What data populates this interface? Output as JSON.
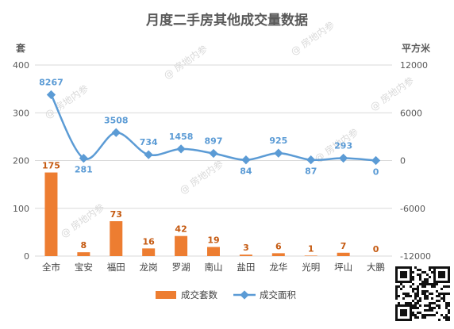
{
  "chart_data": {
    "type": "bar",
    "title": "月度二手房其他成交量数据",
    "categories": [
      "全市",
      "宝安",
      "福田",
      "龙岗",
      "罗湖",
      "南山",
      "盐田",
      "龙华",
      "光明",
      "坪山",
      "大鹏"
    ],
    "series": [
      {
        "name": "成交套数",
        "type": "bar",
        "axis": "left",
        "color": "#ed7d31",
        "label_color": "#c55a11",
        "values": [
          175,
          8,
          73,
          16,
          42,
          19,
          3,
          6,
          1,
          7,
          0
        ]
      },
      {
        "name": "成交面积",
        "type": "line",
        "axis": "right",
        "color": "#5b9bd5",
        "label_color": "#5b9bd5",
        "values": [
          8267,
          281,
          3508,
          734,
          1458,
          897,
          84,
          925,
          87,
          293,
          0
        ]
      }
    ],
    "left_axis": {
      "unit": "套",
      "ylim": [
        0,
        400
      ],
      "ticks": [
        "0",
        "100",
        "200",
        "300",
        "400"
      ],
      "tick_values": [
        0,
        100,
        200,
        300,
        400
      ]
    },
    "right_axis": {
      "unit": "平方米",
      "ylim": [
        -12000,
        12000
      ],
      "ticks": [
        "-12000",
        "-6000",
        "0",
        "6000",
        "12000"
      ],
      "tick_values": [
        -12000,
        -6000,
        0,
        6000,
        12000
      ]
    },
    "grid": true,
    "legend_position": "bottom",
    "watermark": "@ 房地内参"
  }
}
